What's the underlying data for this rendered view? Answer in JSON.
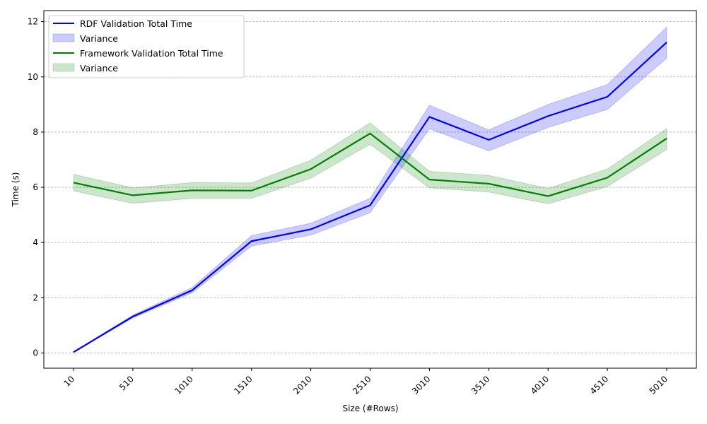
{
  "chart_data": {
    "type": "line",
    "title": "",
    "xlabel": "Size (#Rows)",
    "ylabel": "Time (s)",
    "categories": [
      "10",
      "510",
      "1010",
      "1510",
      "2010",
      "2510",
      "3010",
      "3510",
      "4010",
      "4510",
      "5010"
    ],
    "ylim": [
      -0.55,
      12.4
    ],
    "yticks": [
      0,
      2,
      4,
      6,
      8,
      10,
      12
    ],
    "grid": "y-dashed",
    "legend_position": "top-left",
    "series": [
      {
        "name": "RDF Validation Total Time",
        "color": "#0000ff",
        "values": [
          0.03,
          1.32,
          2.27,
          4.05,
          4.48,
          5.35,
          8.55,
          7.72,
          8.58,
          9.28,
          11.25
        ],
        "lower": [
          0.02,
          1.27,
          2.18,
          3.87,
          4.27,
          5.08,
          8.12,
          7.32,
          8.17,
          8.82,
          10.68
        ],
        "upper": [
          0.05,
          1.37,
          2.37,
          4.25,
          4.7,
          5.6,
          8.97,
          8.08,
          9.0,
          9.72,
          11.8
        ],
        "band_name": "Variance",
        "band_color": "#0000ff"
      },
      {
        "name": "Framework Validation Total Time",
        "color": "#008000",
        "values": [
          6.17,
          5.71,
          5.89,
          5.88,
          6.66,
          7.95,
          6.28,
          6.13,
          5.68,
          6.35,
          7.77
        ],
        "lower": [
          5.87,
          5.42,
          5.6,
          5.6,
          6.33,
          7.56,
          5.98,
          5.83,
          5.4,
          6.03,
          7.37
        ],
        "upper": [
          6.47,
          5.98,
          6.17,
          6.16,
          6.98,
          8.33,
          6.58,
          6.43,
          5.96,
          6.66,
          8.13
        ],
        "band_name": "Variance",
        "band_color": "#008000"
      }
    ]
  }
}
